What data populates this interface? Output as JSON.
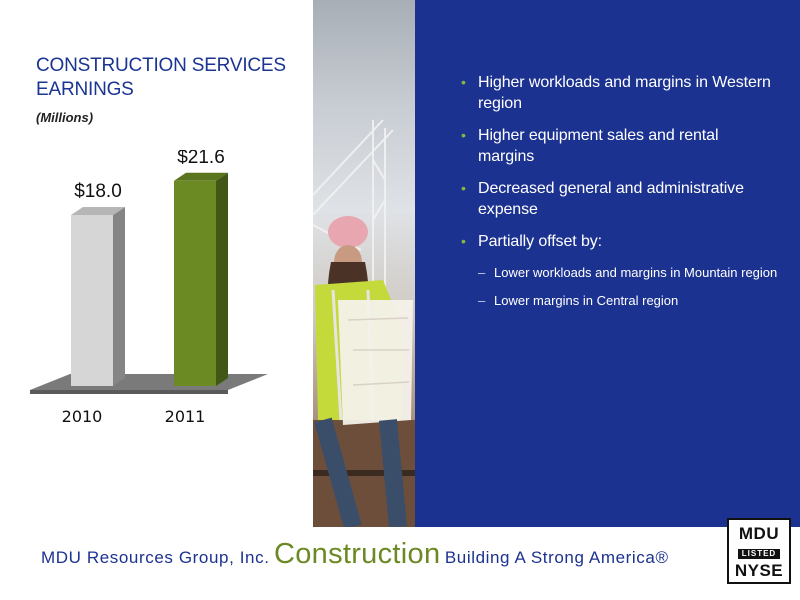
{
  "chart_data": {
    "type": "bar",
    "title": "CONSTRUCTION SERVICES EARNINGS",
    "subtitle": "(Millions)",
    "categories": [
      "2010",
      "2011"
    ],
    "values": [
      18.0,
      21.6
    ],
    "data_labels": [
      "$18.0",
      "$21.6"
    ],
    "ylim": [
      0,
      24
    ],
    "colors": [
      "#d6d6d6",
      "#6b8a24"
    ],
    "xlabel": "",
    "ylabel": "",
    "grid": false
  },
  "chart_title_lines": [
    "CONSTRUCTION SERVICES",
    "EARNINGS"
  ],
  "bullets": [
    {
      "text": "Higher workloads and margins in Western region"
    },
    {
      "text": "Higher equipment sales and rental margins"
    },
    {
      "text": "Decreased general and administrative expense"
    },
    {
      "text": "Partially offset by:"
    }
  ],
  "sub_bullets": [
    {
      "text": "Lower workloads and margins in Mountain region"
    },
    {
      "text": "Lower margins in Central region"
    }
  ],
  "footer": {
    "company": "MDU Resources Group, Inc.",
    "segment": "Construction",
    "tagline": "Building A Strong America",
    "registered": "®"
  },
  "logo": {
    "top": "MDU",
    "middle": "LISTED",
    "bottom": "NYSE"
  },
  "colors": {
    "panel": "#1c3290",
    "accent_green": "#6b8a24",
    "bullet_green": "#8ab53d",
    "title_blue": "#1a3592"
  }
}
